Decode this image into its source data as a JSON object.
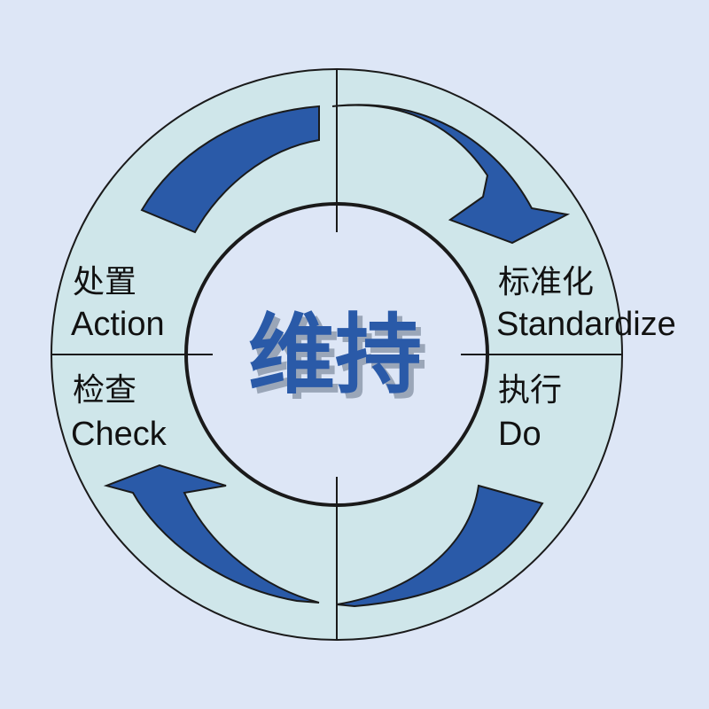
{
  "center": {
    "label": "维持"
  },
  "quadrants": {
    "action": {
      "cn": "处置",
      "en": "Action"
    },
    "standardize": {
      "cn": "标准化",
      "en": "Standardize"
    },
    "check": {
      "cn": "检查",
      "en": "Check"
    },
    "do": {
      "cn": "执行",
      "en": "Do"
    }
  },
  "colors": {
    "background": "#dde6f6",
    "ring": "#cfe6ea",
    "inner_circle": "#dde6f6",
    "arrow": "#2a5aa8",
    "center_text": "#2a5aa8",
    "outline": "#1a1a1a"
  }
}
